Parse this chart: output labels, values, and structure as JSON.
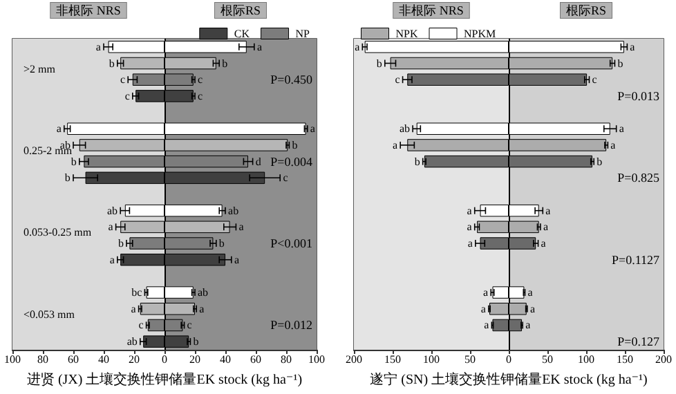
{
  "chart_data": [
    {
      "type": "bar",
      "orientation": "horizontal",
      "stacked": true,
      "xlabel": "进贤 (JX) 土壤交换性钾储量EK stock (kg ha⁻¹)",
      "legend": "top right",
      "categories": [
        null,
        ">2 mm",
        null,
        null,
        null,
        null,
        "0.25-2 mm",
        null,
        null,
        null,
        null,
        "0.053-0.25 mm",
        null,
        null,
        null,
        null,
        "<0.053 mm",
        null,
        null
      ],
      "xlim": [
        -100,
        100
      ],
      "xticks": [
        {
          "value": -100,
          "label": "100"
        },
        {
          "value": -80,
          "label": "80"
        },
        {
          "value": -60,
          "label": "60"
        },
        {
          "value": -40,
          "label": "40"
        },
        {
          "value": -20,
          "label": "20"
        },
        0,
        20,
        40,
        60,
        80,
        100
      ],
      "bands": [
        {
          "axis": "x",
          "from": -100,
          "to": 0,
          "label": "非根际 NRS",
          "color": "#dadada"
        },
        {
          "axis": "x",
          "from": 0,
          "to": 100,
          "label": "根际RS",
          "color": "#8e8e8e"
        }
      ],
      "ref_lines": [
        {
          "axis": "x",
          "value": 0,
          "color": "#000000"
        }
      ],
      "annotations": [
        "P=0.450",
        "P=0.004",
        "P<0.001",
        "P=0.012"
      ],
      "series": [
        {
          "color": "#ffffff",
          "values": [
            -37,
            null,
            null,
            null,
            null,
            -64,
            null,
            null,
            null,
            null,
            -26,
            null,
            null,
            null,
            null,
            -12,
            null,
            null,
            null
          ],
          "errors": [
            3,
            null,
            null,
            null,
            null,
            2,
            null,
            null,
            null,
            null,
            3,
            null,
            null,
            null,
            null,
            1,
            null,
            null,
            null
          ],
          "value_labels": [
            "a",
            null,
            null,
            null,
            null,
            "a",
            null,
            null,
            null,
            null,
            "ab",
            null,
            null,
            null,
            null,
            "bc",
            null,
            null,
            null
          ]
        },
        {
          "color": "#ffffff",
          "values": [
            54,
            null,
            null,
            null,
            null,
            93,
            null,
            null,
            null,
            null,
            38,
            null,
            null,
            null,
            null,
            19,
            null,
            null,
            null
          ],
          "errors": [
            5,
            null,
            null,
            null,
            null,
            1,
            null,
            null,
            null,
            null,
            2,
            null,
            null,
            null,
            null,
            1,
            null,
            null,
            null
          ],
          "value_labels": [
            "a",
            null,
            null,
            null,
            null,
            "a",
            null,
            null,
            null,
            null,
            "ab",
            null,
            null,
            null,
            null,
            "ab",
            null,
            null,
            null
          ]
        },
        {
          "color": "#b6b6b6",
          "values": [
            null,
            -29,
            null,
            null,
            null,
            null,
            -56,
            null,
            null,
            null,
            null,
            -29,
            null,
            null,
            null,
            null,
            -16,
            null,
            null
          ],
          "errors": [
            null,
            2,
            null,
            null,
            null,
            null,
            4,
            null,
            null,
            null,
            null,
            3,
            null,
            null,
            null,
            null,
            1,
            null,
            null
          ],
          "value_labels": [
            null,
            "b",
            null,
            null,
            null,
            null,
            "ab",
            null,
            null,
            null,
            null,
            "a",
            null,
            null,
            null,
            null,
            "a",
            null,
            null
          ]
        },
        {
          "color": "#b6b6b6",
          "values": [
            null,
            34,
            null,
            null,
            null,
            null,
            81,
            null,
            null,
            null,
            null,
            43,
            null,
            null,
            null,
            null,
            20,
            null,
            null
          ],
          "errors": [
            null,
            2,
            null,
            null,
            null,
            null,
            1,
            null,
            null,
            null,
            null,
            4,
            null,
            null,
            null,
            null,
            1,
            null,
            null
          ],
          "value_labels": [
            null,
            "b",
            null,
            null,
            null,
            null,
            "b",
            null,
            null,
            null,
            null,
            "a",
            null,
            null,
            null,
            null,
            "a",
            null,
            null
          ]
        },
        {
          "name": "NP",
          "color": "#7c7c7c",
          "values": [
            null,
            null,
            -21,
            null,
            null,
            null,
            null,
            -53,
            null,
            null,
            null,
            null,
            -23,
            null,
            null,
            null,
            null,
            -11,
            null
          ],
          "errors": [
            null,
            null,
            3,
            null,
            null,
            null,
            null,
            3,
            null,
            null,
            null,
            null,
            2,
            null,
            null,
            null,
            null,
            1,
            null
          ],
          "value_labels": [
            null,
            null,
            "c",
            null,
            null,
            null,
            null,
            "b",
            null,
            null,
            null,
            null,
            "b",
            null,
            null,
            null,
            null,
            "c",
            null
          ]
        },
        {
          "color": "#7c7c7c",
          "values": [
            null,
            null,
            19,
            null,
            null,
            null,
            null,
            55,
            null,
            null,
            null,
            null,
            32,
            null,
            null,
            null,
            null,
            12,
            null
          ],
          "errors": [
            null,
            null,
            1,
            null,
            null,
            null,
            null,
            3,
            null,
            null,
            null,
            null,
            2,
            null,
            null,
            null,
            null,
            1,
            null
          ],
          "value_labels": [
            null,
            null,
            "c",
            null,
            null,
            null,
            null,
            "d",
            null,
            null,
            null,
            null,
            "b",
            null,
            null,
            null,
            null,
            "c",
            null
          ]
        },
        {
          "name": "CK",
          "color": "#404040",
          "values": [
            null,
            null,
            null,
            -19,
            null,
            null,
            null,
            null,
            -52,
            null,
            null,
            null,
            null,
            -29,
            null,
            null,
            null,
            null,
            -14
          ],
          "errors": [
            null,
            null,
            null,
            2,
            null,
            null,
            null,
            null,
            8,
            null,
            null,
            null,
            null,
            2,
            null,
            null,
            null,
            null,
            2
          ],
          "value_labels": [
            null,
            null,
            null,
            "c",
            null,
            null,
            null,
            null,
            "b",
            null,
            null,
            null,
            null,
            "a",
            null,
            null,
            null,
            null,
            "ab"
          ]
        },
        {
          "color": "#404040",
          "values": [
            null,
            null,
            null,
            19,
            null,
            null,
            null,
            null,
            66,
            null,
            null,
            null,
            null,
            40,
            null,
            null,
            null,
            null,
            16
          ],
          "errors": [
            null,
            null,
            null,
            1,
            null,
            null,
            null,
            null,
            10,
            null,
            null,
            null,
            null,
            4,
            null,
            null,
            null,
            null,
            1
          ],
          "value_labels": [
            null,
            null,
            null,
            "c",
            null,
            null,
            null,
            null,
            "c",
            null,
            null,
            null,
            null,
            "a",
            null,
            null,
            null,
            null,
            "b"
          ]
        }
      ]
    },
    {
      "type": "bar",
      "orientation": "horizontal",
      "stacked": true,
      "xlabel": "遂宁 (SN) 土壤交换性钾储量EK stock (kg ha⁻¹)",
      "legend": "top left",
      "tick_labels": "x",
      "categories": [
        null,
        null,
        null,
        null,
        null,
        null,
        null,
        null,
        null,
        null,
        null,
        null,
        null,
        null,
        null,
        null,
        null,
        null,
        null
      ],
      "xlim": [
        -200,
        200
      ],
      "xticks": [
        {
          "value": -200,
          "label": "200"
        },
        {
          "value": -150,
          "label": "150"
        },
        {
          "value": -100,
          "label": "100"
        },
        {
          "value": -50,
          "label": "50"
        },
        0,
        50,
        100,
        150,
        200
      ],
      "bands": [
        {
          "axis": "x",
          "from": -200,
          "to": 0,
          "label": "非根际 NRS",
          "color": "#e4e4e4"
        },
        {
          "axis": "x",
          "from": 0,
          "to": 200,
          "label": "根际RS",
          "color": "#d0d0d0"
        }
      ],
      "ref_lines": [
        {
          "axis": "x",
          "value": 0,
          "color": "#000000"
        }
      ],
      "annotations": [
        "P=0.013",
        "P=0.825",
        "P=0.1127",
        "P=0.127"
      ],
      "series": [
        {
          "name": "NPKM",
          "color": "#ffffff",
          "values": [
            -186,
            null,
            null,
            null,
            null,
            -119,
            null,
            null,
            null,
            null,
            -37,
            null,
            null,
            null,
            null,
            -21,
            null,
            null,
            null
          ],
          "errors": [
            3,
            null,
            null,
            null,
            null,
            5,
            null,
            null,
            null,
            null,
            7,
            null,
            null,
            null,
            null,
            2,
            null,
            null,
            null
          ],
          "value_labels": [
            "a",
            null,
            null,
            null,
            null,
            "ab",
            null,
            null,
            null,
            null,
            "a",
            null,
            null,
            null,
            null,
            "a",
            null,
            null,
            null
          ]
        },
        {
          "color": "#ffffff",
          "values": [
            149,
            null,
            null,
            null,
            null,
            131,
            null,
            null,
            null,
            null,
            39,
            null,
            null,
            null,
            null,
            20,
            null,
            null,
            null
          ],
          "errors": [
            4,
            null,
            null,
            null,
            null,
            8,
            null,
            null,
            null,
            null,
            5,
            null,
            null,
            null,
            null,
            1,
            null,
            null,
            null
          ],
          "value_labels": [
            "a",
            null,
            null,
            null,
            null,
            "a",
            null,
            null,
            null,
            null,
            "a",
            null,
            null,
            null,
            null,
            "a",
            null,
            null,
            null
          ]
        },
        {
          "name": "NPK",
          "color": "#acacac",
          "values": [
            null,
            -153,
            null,
            null,
            null,
            null,
            -131,
            null,
            null,
            null,
            null,
            -41,
            null,
            null,
            null,
            null,
            -25,
            null,
            null
          ],
          "errors": [
            null,
            7,
            null,
            null,
            null,
            null,
            9,
            null,
            null,
            null,
            null,
            3,
            null,
            null,
            null,
            null,
            1,
            null,
            null
          ],
          "value_labels": [
            null,
            "b",
            null,
            null,
            null,
            null,
            "a",
            null,
            null,
            null,
            null,
            "a",
            null,
            null,
            null,
            null,
            "a",
            null,
            null
          ]
        },
        {
          "color": "#acacac",
          "values": [
            null,
            134,
            null,
            null,
            null,
            null,
            126,
            null,
            null,
            null,
            null,
            39,
            null,
            null,
            null,
            null,
            23,
            null,
            null
          ],
          "errors": [
            null,
            3,
            null,
            null,
            null,
            null,
            2,
            null,
            null,
            null,
            null,
            2,
            null,
            null,
            null,
            null,
            1,
            null,
            null
          ],
          "value_labels": [
            null,
            "b",
            null,
            null,
            null,
            null,
            "a",
            null,
            null,
            null,
            null,
            "a",
            null,
            null,
            null,
            null,
            "a",
            null,
            null
          ]
        },
        {
          "color": "#6a6a6a",
          "values": [
            null,
            null,
            -131,
            null,
            null,
            null,
            null,
            -109,
            null,
            null,
            null,
            null,
            -37,
            null,
            null,
            null,
            null,
            -21,
            null
          ],
          "errors": [
            null,
            null,
            6,
            null,
            null,
            null,
            null,
            2,
            null,
            null,
            null,
            null,
            6,
            null,
            null,
            null,
            null,
            1,
            null
          ],
          "value_labels": [
            null,
            null,
            "c",
            null,
            null,
            null,
            null,
            "b",
            null,
            null,
            null,
            null,
            "a",
            null,
            null,
            null,
            null,
            "a",
            null
          ]
        },
        {
          "color": "#6a6a6a",
          "values": [
            null,
            null,
            101,
            null,
            null,
            null,
            null,
            108,
            null,
            null,
            null,
            null,
            35,
            null,
            null,
            null,
            null,
            17,
            null
          ],
          "errors": [
            null,
            null,
            3,
            null,
            null,
            null,
            null,
            2,
            null,
            null,
            null,
            null,
            3,
            null,
            null,
            null,
            null,
            1,
            null
          ],
          "value_labels": [
            null,
            null,
            "c",
            null,
            null,
            null,
            null,
            "b",
            null,
            null,
            null,
            null,
            "a",
            null,
            null,
            null,
            null,
            "a",
            null
          ]
        }
      ]
    }
  ]
}
